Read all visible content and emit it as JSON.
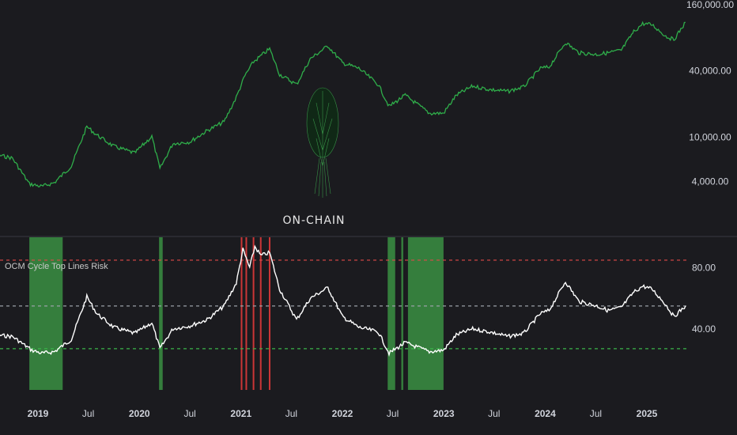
{
  "indicator": {
    "title": "OCM Cycle Top Lines Risk",
    "watermark": "ON-CHAIN"
  },
  "chart_data": [
    {
      "type": "line",
      "name": "price",
      "y_scale": "log",
      "ylim": [
        2500,
        160000
      ],
      "yticks": [
        "160,000.00",
        "40,000.00",
        "10,000.00",
        "4,000.00"
      ],
      "ytick_values": [
        160000,
        40000,
        10000,
        4000
      ],
      "line_color": "#2fae4a",
      "x": [
        "2018-06-01",
        "2018-08-01",
        "2018-10-01",
        "2018-12-01",
        "2019-01-15",
        "2019-03-01",
        "2019-05-01",
        "2019-06-26",
        "2019-08-01",
        "2019-10-01",
        "2019-12-15",
        "2020-02-15",
        "2020-03-15",
        "2020-05-01",
        "2020-07-01",
        "2020-09-01",
        "2020-11-01",
        "2020-12-15",
        "2021-01-15",
        "2021-02-15",
        "2021-04-14",
        "2021-05-20",
        "2021-07-20",
        "2021-09-07",
        "2021-11-10",
        "2022-01-01",
        "2022-03-01",
        "2022-05-10",
        "2022-06-18",
        "2022-08-15",
        "2022-11-10",
        "2022-12-31",
        "2023-02-15",
        "2023-04-15",
        "2023-06-15",
        "2023-08-20",
        "2023-10-15",
        "2023-12-15",
        "2024-01-15",
        "2024-03-14",
        "2024-05-01",
        "2024-07-05",
        "2024-08-15",
        "2024-10-01",
        "2024-11-15",
        "2024-12-17",
        "2025-01-20",
        "2025-03-10",
        "2025-04-08",
        "2025-05-20"
      ],
      "y": [
        7500,
        7000,
        6500,
        3800,
        3600,
        3900,
        5500,
        12500,
        10500,
        8300,
        7200,
        10200,
        5200,
        8800,
        9100,
        11500,
        13800,
        23000,
        36000,
        48000,
        63000,
        37000,
        30000,
        51000,
        67000,
        47000,
        42000,
        30000,
        19000,
        24000,
        16500,
        16500,
        24000,
        29000,
        27000,
        26000,
        28500,
        42000,
        43000,
        72000,
        58000,
        56000,
        58000,
        61000,
        90000,
        106000,
        104000,
        82000,
        76000,
        109000
      ]
    },
    {
      "type": "line",
      "name": "risk",
      "ylim": [
        0,
        100
      ],
      "yticks": [
        "80.00",
        "40.00"
      ],
      "ytick_values": [
        80,
        40
      ],
      "line_color": "#ffffff",
      "hlines": [
        {
          "value": 85,
          "color": "#e04848"
        },
        {
          "value": 55,
          "color": "#9aa0a6"
        },
        {
          "value": 27,
          "color": "#3ab54a"
        }
      ],
      "low_risk_zones": [
        [
          "2018-12-01",
          "2019-03-31"
        ],
        [
          "2020-03-12",
          "2020-03-25"
        ],
        [
          "2022-06-13",
          "2022-07-10"
        ],
        [
          "2022-08-01",
          "2022-08-08"
        ],
        [
          "2022-08-25",
          "2022-12-31"
        ]
      ],
      "high_risk_marks": [
        "2021-01-03",
        "2021-01-20",
        "2021-02-15",
        "2021-03-13",
        "2021-04-14"
      ],
      "x": [
        "2018-06-01",
        "2018-08-01",
        "2018-10-01",
        "2018-12-10",
        "2019-01-15",
        "2019-03-01",
        "2019-05-01",
        "2019-06-26",
        "2019-08-01",
        "2019-10-01",
        "2019-12-15",
        "2020-02-15",
        "2020-03-15",
        "2020-05-01",
        "2020-07-01",
        "2020-09-01",
        "2020-11-01",
        "2020-12-15",
        "2021-01-08",
        "2021-02-01",
        "2021-02-20",
        "2021-03-13",
        "2021-04-14",
        "2021-05-20",
        "2021-07-20",
        "2021-09-07",
        "2021-11-10",
        "2022-01-01",
        "2022-03-01",
        "2022-05-10",
        "2022-06-18",
        "2022-08-15",
        "2022-11-10",
        "2022-12-31",
        "2023-02-15",
        "2023-04-15",
        "2023-06-15",
        "2023-08-20",
        "2023-10-15",
        "2023-12-15",
        "2024-01-15",
        "2024-03-14",
        "2024-05-01",
        "2024-07-05",
        "2024-08-15",
        "2024-10-01",
        "2024-11-15",
        "2024-12-17",
        "2025-01-20",
        "2025-03-10",
        "2025-04-08",
        "2025-05-20"
      ],
      "y": [
        38,
        36,
        35,
        26,
        24,
        25,
        33,
        61,
        50,
        41,
        37,
        44,
        27,
        40,
        42,
        46,
        55,
        70,
        92,
        80,
        94,
        88,
        90,
        66,
        46,
        60,
        67,
        48,
        41,
        38,
        24,
        31,
        25,
        26,
        36,
        40,
        38,
        35,
        37,
        50,
        52,
        71,
        58,
        55,
        52,
        54,
        64,
        68,
        66,
        56,
        48,
        55
      ]
    }
  ],
  "x_axis": {
    "ticks": [
      {
        "date": "2019-01-01",
        "label": "2019",
        "bold": true
      },
      {
        "date": "2019-07-01",
        "label": "Jul",
        "bold": false
      },
      {
        "date": "2020-01-01",
        "label": "2020",
        "bold": true
      },
      {
        "date": "2020-07-01",
        "label": "Jul",
        "bold": false
      },
      {
        "date": "2021-01-01",
        "label": "2021",
        "bold": true
      },
      {
        "date": "2021-07-01",
        "label": "Jul",
        "bold": false
      },
      {
        "date": "2022-01-01",
        "label": "2022",
        "bold": true
      },
      {
        "date": "2022-07-01",
        "label": "Jul",
        "bold": false
      },
      {
        "date": "2023-01-01",
        "label": "2023",
        "bold": true
      },
      {
        "date": "2023-07-01",
        "label": "Jul",
        "bold": false
      },
      {
        "date": "2024-01-01",
        "label": "2024",
        "bold": true
      },
      {
        "date": "2024-07-01",
        "label": "Jul",
        "bold": false
      },
      {
        "date": "2025-01-01",
        "label": "2025",
        "bold": true
      }
    ]
  }
}
